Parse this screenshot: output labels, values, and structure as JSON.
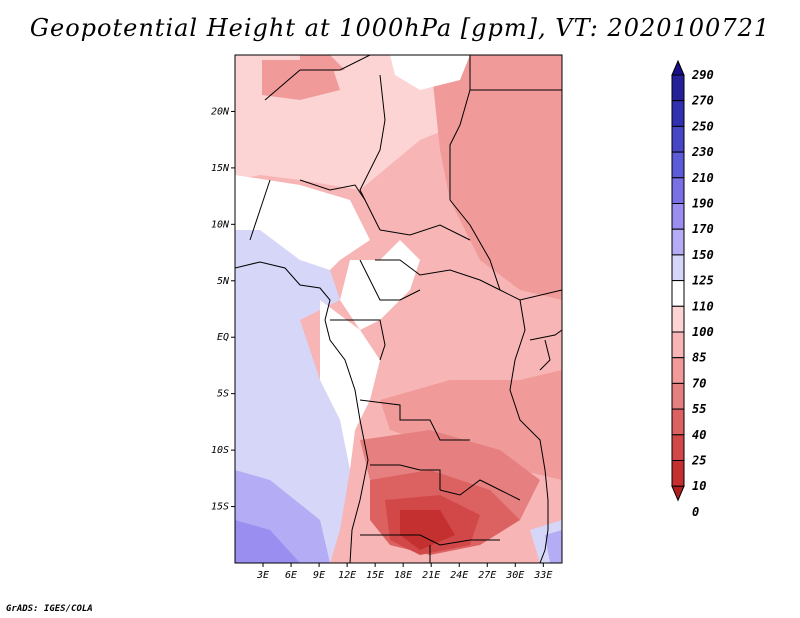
{
  "title": "Geopotential Height at 1000hPa [gpm], VT: 2020100721",
  "credit": "GrADS: IGES/COLA",
  "map": {
    "lat_range": [
      -20,
      25
    ],
    "lon_range": [
      0,
      35
    ],
    "lat_ticks": [
      {
        "value": 20,
        "label": "20N"
      },
      {
        "value": 15,
        "label": "15N"
      },
      {
        "value": 10,
        "label": "10N"
      },
      {
        "value": 5,
        "label": "5N"
      },
      {
        "value": 0,
        "label": "EQ"
      },
      {
        "value": -5,
        "label": "5S"
      },
      {
        "value": -10,
        "label": "10S"
      },
      {
        "value": -15,
        "label": "15S"
      }
    ],
    "lon_ticks": [
      {
        "value": 3,
        "label": "3E"
      },
      {
        "value": 6,
        "label": "6E"
      },
      {
        "value": 9,
        "label": "9E"
      },
      {
        "value": 12,
        "label": "12E"
      },
      {
        "value": 15,
        "label": "15E"
      },
      {
        "value": 18,
        "label": "18E"
      },
      {
        "value": 21,
        "label": "21E"
      },
      {
        "value": 24,
        "label": "24E"
      },
      {
        "value": 27,
        "label": "27E"
      },
      {
        "value": 30,
        "label": "30E"
      },
      {
        "value": 33,
        "label": "33E"
      }
    ]
  },
  "colorbar": {
    "levels": [
      {
        "label": "290",
        "color": "#1a0f8a"
      },
      {
        "label": "270",
        "color": "#24209a"
      },
      {
        "label": "250",
        "color": "#3030b0"
      },
      {
        "label": "230",
        "color": "#4646c6"
      },
      {
        "label": "210",
        "color": "#5c5cd8"
      },
      {
        "label": "190",
        "color": "#7a70e6"
      },
      {
        "label": "170",
        "color": "#9a8ef0"
      },
      {
        "label": "150",
        "color": "#b4acf4"
      },
      {
        "label": "125",
        "color": "#d6d6f8"
      },
      {
        "label": "110",
        "color": "#ffffff"
      },
      {
        "label": "100",
        "color": "#fcd4d4"
      },
      {
        "label": "85",
        "color": "#f7b5b5"
      },
      {
        "label": "70",
        "color": "#f09a9a"
      },
      {
        "label": "55",
        "color": "#e68080"
      },
      {
        "label": "40",
        "color": "#dc6262"
      },
      {
        "label": "25",
        "color": "#d24848"
      },
      {
        "label": "10",
        "color": "#c43030"
      },
      {
        "label": "0",
        "color": "#b21e1e"
      }
    ]
  }
}
